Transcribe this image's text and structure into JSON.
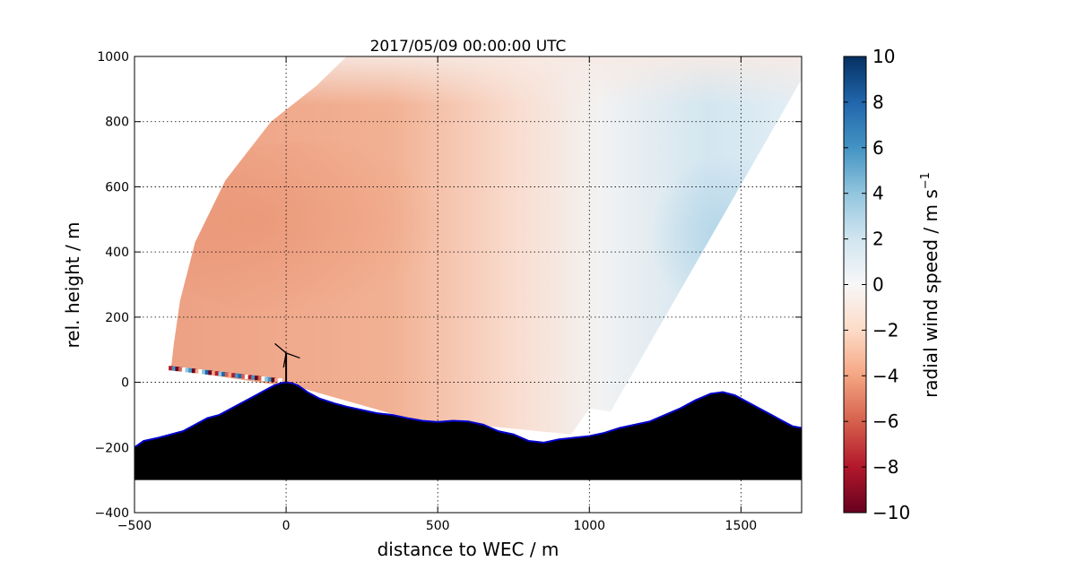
{
  "chart_data": {
    "type": "heatmap",
    "title": "2017/05/09 00:00:00 UTC",
    "xlabel": "distance to WEC / m",
    "ylabel": "rel. height / m",
    "xlim": [
      -500,
      1700
    ],
    "ylim": [
      -400,
      1000
    ],
    "xticks": [
      -500,
      0,
      500,
      1000,
      1500
    ],
    "yticks": [
      -400,
      -200,
      0,
      200,
      400,
      600,
      800,
      1000
    ],
    "xtick_labels": [
      "−500",
      "0",
      "500",
      "1000",
      "1500"
    ],
    "ytick_labels": [
      "−400",
      "−200",
      "0",
      "200",
      "400",
      "600",
      "800",
      "1000"
    ],
    "grid": true,
    "colorbar": {
      "label": "radial wind speed / m s",
      "label_exponent": "−1",
      "range": [
        -10,
        10
      ],
      "ticks": [
        10,
        8,
        6,
        4,
        2,
        0,
        -2,
        -4,
        -6,
        -8,
        -10
      ],
      "tick_labels": [
        "10",
        "8",
        "6",
        "4",
        "2",
        "0",
        "−2",
        "−4",
        "−6",
        "−8",
        "−10"
      ],
      "colormap": "RdBu"
    },
    "scan_sector": {
      "origin_x": 1040,
      "origin_y": -260,
      "inner_edge": [
        [
          -380,
          40
        ],
        [
          -370,
          120
        ],
        [
          -350,
          250
        ],
        [
          -300,
          430
        ],
        [
          -200,
          620
        ],
        [
          -50,
          800
        ],
        [
          100,
          910
        ],
        [
          200,
          1000
        ]
      ],
      "outer_edge": [
        [
          1700,
          930
        ],
        [
          1070,
          -90
        ]
      ],
      "velocity_field": [
        {
          "x": -200,
          "y": 480,
          "value": -5.0
        },
        {
          "x": 200,
          "y": 500,
          "value": -4.0
        },
        {
          "x": 500,
          "y": 300,
          "value": -3.0
        },
        {
          "x": 700,
          "y": 700,
          "value": -1.5
        },
        {
          "x": 1050,
          "y": 500,
          "value": 0.0
        },
        {
          "x": 1400,
          "y": 500,
          "value": 2.5
        },
        {
          "x": 1500,
          "y": 900,
          "value": 1.0
        },
        {
          "x": 900,
          "y": -100,
          "value": -0.5
        }
      ]
    },
    "terrain_profile": {
      "x": [
        -500,
        -470,
        -420,
        -380,
        -340,
        -300,
        -260,
        -220,
        -180,
        -140,
        -100,
        -70,
        -40,
        -15,
        0,
        20,
        40,
        70,
        110,
        160,
        200,
        250,
        300,
        350,
        400,
        450,
        500,
        550,
        600,
        650,
        700,
        750,
        800,
        850,
        900,
        950,
        1000,
        1050,
        1100,
        1150,
        1200,
        1250,
        1300,
        1350,
        1400,
        1440,
        1480,
        1520,
        1560,
        1600,
        1640,
        1670,
        1700
      ],
      "y": [
        -200,
        -180,
        -170,
        -160,
        -150,
        -130,
        -110,
        -100,
        -80,
        -60,
        -40,
        -25,
        -10,
        -2,
        0,
        -3,
        -10,
        -30,
        -50,
        -65,
        -75,
        -85,
        -95,
        -100,
        -110,
        -118,
        -122,
        -118,
        -120,
        -130,
        -150,
        -160,
        -180,
        -185,
        -175,
        -170,
        -165,
        -155,
        -140,
        -130,
        -120,
        -100,
        -80,
        -55,
        -35,
        -30,
        -40,
        -60,
        -80,
        -100,
        -120,
        -135,
        -140
      ],
      "base_y": -300,
      "color": "#000000",
      "edge_color": "#0000cc"
    },
    "turbine": {
      "x": 0,
      "hub_height": 90,
      "blade_length": 45
    }
  }
}
